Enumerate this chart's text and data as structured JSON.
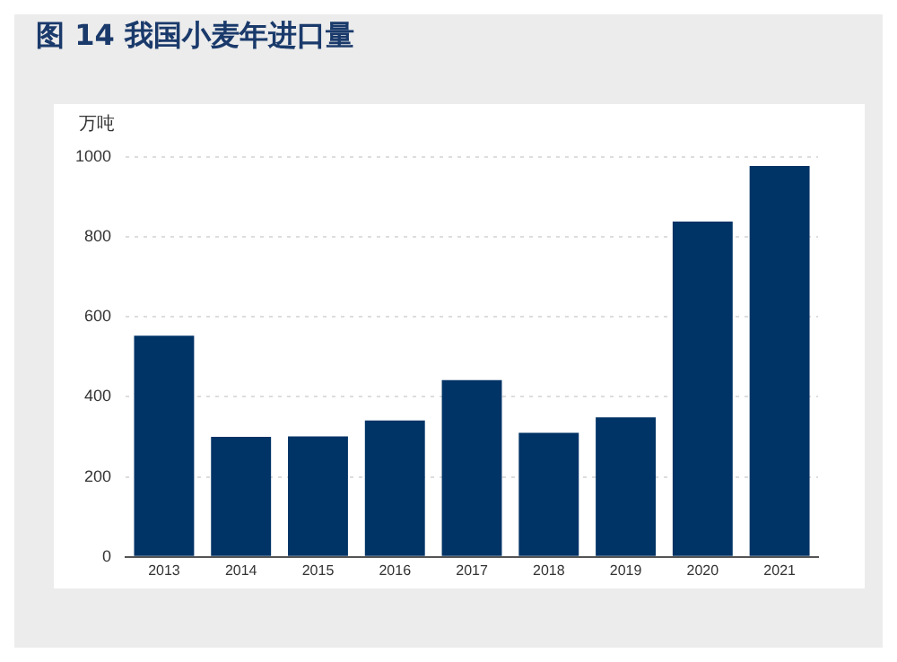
{
  "chart_data": {
    "type": "bar",
    "title": "图 14 我国小麦年进口量",
    "ylabel": "万吨",
    "categories": [
      "2013",
      "2014",
      "2015",
      "2016",
      "2017",
      "2018",
      "2019",
      "2020",
      "2021"
    ],
    "values": [
      553,
      300,
      301,
      341,
      442,
      310,
      349,
      838,
      977
    ],
    "color": "#003366",
    "ylim": [
      0,
      1000
    ],
    "yticks": [
      0,
      200,
      400,
      600,
      800,
      1000
    ],
    "grid": "y"
  }
}
